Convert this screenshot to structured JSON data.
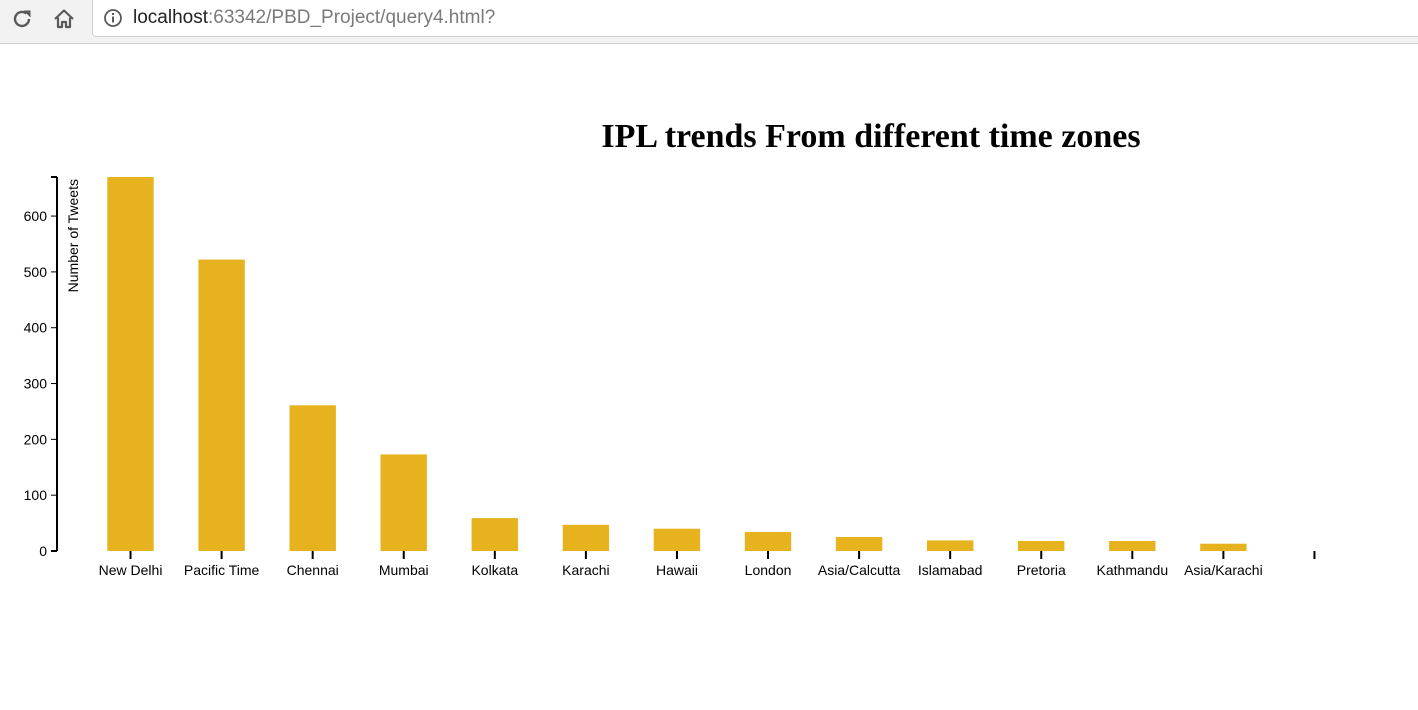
{
  "browser": {
    "icons": {
      "reload": "reload-icon",
      "home": "home-icon",
      "info": "info-icon"
    },
    "url_host": "localhost",
    "url_rest": ":63342/PBD_Project/query4.html?"
  },
  "chart_data": {
    "type": "bar",
    "title": "IPL trends From different time zones",
    "xlabel": "",
    "ylabel": "Number of Tweets",
    "categories": [
      "New Delhi",
      "Pacific Time",
      "Chennai",
      "Mumbai",
      "Kolkata",
      "Karachi",
      "Hawaii",
      "London",
      "Asia/Calcutta",
      "Islamabad",
      "Pretoria",
      "Kathmandu",
      "Asia/Karachi",
      ""
    ],
    "values": [
      670,
      522,
      261,
      173,
      59,
      47,
      40,
      34,
      25,
      19,
      18,
      18,
      13,
      0
    ],
    "yticks": [
      0,
      100,
      200,
      300,
      400,
      500,
      600
    ],
    "ylim": [
      0,
      670
    ],
    "bar_color": "#e6b31e",
    "grid": false
  }
}
